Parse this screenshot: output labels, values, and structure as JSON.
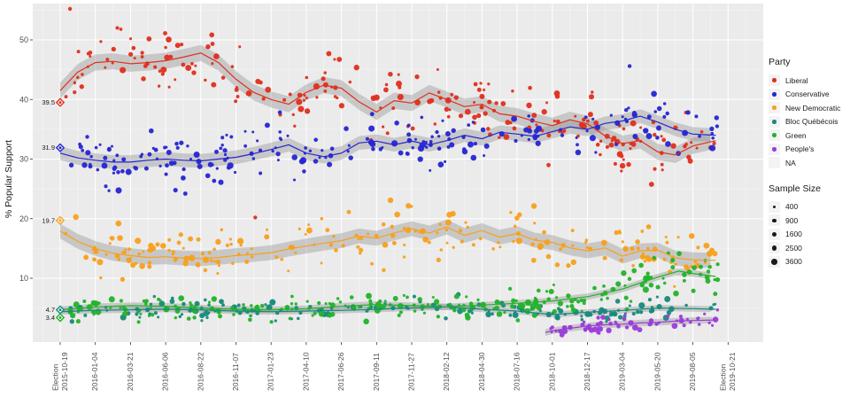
{
  "y_axis": {
    "label": "% Popular Support",
    "ticks": [
      50,
      40,
      30,
      20,
      10
    ]
  },
  "x_axis": {
    "tick_labels": [
      [
        "Election",
        "2015-10-19"
      ],
      [
        "2016-01-04"
      ],
      [
        "2016-03-21"
      ],
      [
        "2016-06-06"
      ],
      [
        "2016-08-22"
      ],
      [
        "2016-11-07"
      ],
      [
        "2017-01-23"
      ],
      [
        "2017-04-10"
      ],
      [
        "2017-06-26"
      ],
      [
        "2017-09-11"
      ],
      [
        "2017-11-27"
      ],
      [
        "2018-02-12"
      ],
      [
        "2018-04-30"
      ],
      [
        "2018-07-16"
      ],
      [
        "2018-10-01"
      ],
      [
        "2018-12-17"
      ],
      [
        "2019-03-04"
      ],
      [
        "2019-05-20"
      ],
      [
        "2019-08-05"
      ],
      [
        "Election",
        "2019-10-21"
      ]
    ]
  },
  "legend": {
    "party": {
      "title": "Party",
      "items": [
        {
          "label": "Liberal",
          "color": "#e0301e"
        },
        {
          "label": "Conservative",
          "color": "#2626d2"
        },
        {
          "label": "New Democratic",
          "color": "#f7a01d"
        },
        {
          "label": "Bloc Québécois",
          "color": "#178a7c"
        },
        {
          "label": "Green",
          "color": "#22b32b"
        },
        {
          "label": "People's",
          "color": "#9b3bd9"
        },
        {
          "label": "NA",
          "color": null
        }
      ]
    },
    "sample_size": {
      "title": "Sample Size",
      "items": [
        {
          "label": "400",
          "r": 1.7
        },
        {
          "label": "900",
          "r": 2.15
        },
        {
          "label": "1600",
          "r": 2.55
        },
        {
          "label": "2500",
          "r": 2.95
        },
        {
          "label": "3600",
          "r": 3.3
        }
      ]
    }
  },
  "chart_data": {
    "type": "scatter",
    "title": "",
    "ylabel": "% Popular Support",
    "ylim": [
      0,
      56
    ],
    "x_ticks_are_dates": [
      "2015-10-19",
      "2016-01-04",
      "2016-03-21",
      "2016-06-06",
      "2016-08-22",
      "2016-11-07",
      "2017-01-23",
      "2017-04-10",
      "2017-06-26",
      "2017-09-11",
      "2017-11-27",
      "2018-02-12",
      "2018-04-30",
      "2018-07-16",
      "2018-10-01",
      "2018-12-17",
      "2019-03-04",
      "2019-05-20",
      "2019-08-05",
      "2019-10-21"
    ],
    "x_unit": "tick index 0-19, ticks evenly spaced (11 weeks apart)",
    "grid": true,
    "legend_position": "right",
    "series": [
      {
        "name": "Liberal",
        "color": "#e0301e",
        "election_2015": 39.5,
        "election_label": "39.5",
        "trend": [
          [
            0,
            41.5
          ],
          [
            0.5,
            44.6
          ],
          [
            1,
            46.2
          ],
          [
            1.5,
            46.4
          ],
          [
            2,
            46.0
          ],
          [
            2.5,
            46.2
          ],
          [
            3,
            46.5
          ],
          [
            3.5,
            47.1
          ],
          [
            4,
            47.8
          ],
          [
            4.5,
            46.2
          ],
          [
            5,
            43.4
          ],
          [
            5.5,
            41.2
          ],
          [
            6,
            40.0
          ],
          [
            6.5,
            39.2
          ],
          [
            7,
            41.2
          ],
          [
            7.5,
            42.4
          ],
          [
            8,
            41.9
          ],
          [
            8.5,
            39.6
          ],
          [
            9,
            37.9
          ],
          [
            9.5,
            39.8
          ],
          [
            10,
            39.4
          ],
          [
            10.5,
            41.1
          ],
          [
            11,
            40.0
          ],
          [
            11.5,
            38.8
          ],
          [
            12,
            39.2
          ],
          [
            12.5,
            37.6
          ],
          [
            13,
            37.2
          ],
          [
            13.5,
            36.3
          ],
          [
            14,
            35.6
          ],
          [
            14.5,
            36.6
          ],
          [
            15,
            35.9
          ],
          [
            15.5,
            33.9
          ],
          [
            16,
            32.6
          ],
          [
            16.5,
            33.1
          ],
          [
            17,
            31.2
          ],
          [
            17.5,
            30.7
          ],
          [
            18,
            32.2
          ],
          [
            18.65,
            33.1
          ]
        ],
        "ribbon_halfwidth": 1.35,
        "scatter": {
          "n": 230,
          "t_range": [
            0.08,
            18.72
          ],
          "sd_base": 1.1,
          "sd_rel": 0.042
        }
      },
      {
        "name": "Conservative",
        "color": "#2626d2",
        "election_2015": 31.9,
        "election_label": "31.9",
        "trend": [
          [
            0,
            31.0
          ],
          [
            0.5,
            30.2
          ],
          [
            1,
            29.8
          ],
          [
            1.5,
            29.5
          ],
          [
            2,
            29.5
          ],
          [
            2.5,
            29.8
          ],
          [
            3,
            30.0
          ],
          [
            3.5,
            29.8
          ],
          [
            4,
            29.7
          ],
          [
            4.5,
            30.0
          ],
          [
            5,
            30.3
          ],
          [
            5.5,
            30.9
          ],
          [
            6,
            31.6
          ],
          [
            6.5,
            32.4
          ],
          [
            7,
            31.0
          ],
          [
            7.5,
            30.4
          ],
          [
            8,
            31.0
          ],
          [
            8.5,
            32.7
          ],
          [
            9,
            33.0
          ],
          [
            9.5,
            32.4
          ],
          [
            10,
            33.0
          ],
          [
            10.5,
            32.4
          ],
          [
            11,
            33.1
          ],
          [
            11.5,
            34.0
          ],
          [
            12,
            33.4
          ],
          [
            12.5,
            34.5
          ],
          [
            13,
            34.2
          ],
          [
            13.5,
            33.8
          ],
          [
            14,
            34.6
          ],
          [
            14.5,
            35.4
          ],
          [
            15,
            35.0
          ],
          [
            15.5,
            36.0
          ],
          [
            16,
            36.4
          ],
          [
            16.5,
            37.2
          ],
          [
            17,
            36.2
          ],
          [
            17.5,
            35.0
          ],
          [
            18,
            34.2
          ],
          [
            18.65,
            34.0
          ]
        ],
        "ribbon_halfwidth": 1.15,
        "scatter": {
          "n": 230,
          "t_range": [
            0.08,
            18.72
          ],
          "sd_base": 0.9,
          "sd_rel": 0.042
        }
      },
      {
        "name": "New Democratic",
        "color": "#f7a01d",
        "election_2015": 19.7,
        "election_label": "19.7",
        "trend": [
          [
            0,
            17.9
          ],
          [
            0.5,
            16.2
          ],
          [
            1,
            15.0
          ],
          [
            1.5,
            14.2
          ],
          [
            2,
            13.8
          ],
          [
            2.5,
            13.5
          ],
          [
            3,
            13.6
          ],
          [
            3.5,
            13.4
          ],
          [
            4,
            13.3
          ],
          [
            4.5,
            13.5
          ],
          [
            5,
            13.8
          ],
          [
            5.5,
            14.0
          ],
          [
            6,
            14.3
          ],
          [
            6.5,
            14.9
          ],
          [
            7,
            15.4
          ],
          [
            7.5,
            15.9
          ],
          [
            8,
            16.3
          ],
          [
            8.5,
            17.1
          ],
          [
            9,
            16.7
          ],
          [
            9.5,
            17.6
          ],
          [
            10,
            18.3
          ],
          [
            10.5,
            17.6
          ],
          [
            11,
            18.6
          ],
          [
            11.5,
            17.2
          ],
          [
            12,
            18.0
          ],
          [
            12.5,
            16.9
          ],
          [
            13,
            17.5
          ],
          [
            13.5,
            16.4
          ],
          [
            14,
            16.0
          ],
          [
            14.5,
            15.1
          ],
          [
            15,
            14.6
          ],
          [
            15.5,
            15.1
          ],
          [
            16,
            13.7
          ],
          [
            16.5,
            14.6
          ],
          [
            17,
            14.7
          ],
          [
            17.5,
            13.4
          ],
          [
            18,
            13.1
          ],
          [
            18.65,
            13.0
          ]
        ],
        "ribbon_halfwidth": 1.25,
        "scatter": {
          "n": 220,
          "t_range": [
            0.08,
            18.72
          ],
          "sd_base": 0.7,
          "sd_rel": 0.09
        }
      },
      {
        "name": "Bloc Québécois",
        "color": "#178a7c",
        "election_2015": 4.7,
        "election_label": "4.7",
        "trend": [
          [
            0,
            4.4
          ],
          [
            1,
            4.6
          ],
          [
            2,
            4.7
          ],
          [
            3,
            4.8
          ],
          [
            4,
            4.7
          ],
          [
            5,
            4.5
          ],
          [
            6,
            4.4
          ],
          [
            7,
            4.5
          ],
          [
            8,
            4.6
          ],
          [
            9,
            4.8
          ],
          [
            10,
            5.0
          ],
          [
            11,
            5.2
          ],
          [
            12,
            4.8
          ],
          [
            13,
            4.5
          ],
          [
            14,
            3.9
          ],
          [
            15,
            4.3
          ],
          [
            16,
            4.6
          ],
          [
            17,
            5.0
          ],
          [
            18,
            4.9
          ],
          [
            18.65,
            4.8
          ]
        ],
        "ribbon_halfwidth": 0.5,
        "scatter": {
          "n": 165,
          "t_range": [
            0.08,
            18.72
          ],
          "sd_base": 0.45,
          "sd_rel": 0.08
        }
      },
      {
        "name": "Green",
        "color": "#22b32b",
        "election_2015": 3.4,
        "election_label": "3.4",
        "trend": [
          [
            0,
            4.7
          ],
          [
            1,
            5.2
          ],
          [
            2,
            5.4
          ],
          [
            3,
            5.3
          ],
          [
            4,
            5.0
          ],
          [
            5,
            4.8
          ],
          [
            6,
            4.7
          ],
          [
            7,
            4.9
          ],
          [
            8,
            5.3
          ],
          [
            9,
            5.6
          ],
          [
            10,
            5.4
          ],
          [
            11,
            5.2
          ],
          [
            12,
            5.5
          ],
          [
            13,
            5.8
          ],
          [
            14,
            6.2
          ],
          [
            15,
            6.9
          ],
          [
            16,
            8.2
          ],
          [
            17,
            10.2
          ],
          [
            17.6,
            11.2
          ],
          [
            18,
            10.8
          ],
          [
            18.65,
            10.3
          ]
        ],
        "ribbon_halfwidth": 0.55,
        "scatter": {
          "n": 230,
          "t_range": [
            0.08,
            18.72
          ],
          "sd_base": 0.35,
          "sd_rel": 0.13
        }
      },
      {
        "name": "People's",
        "color": "#9b3bd9",
        "election_2015": null,
        "election_label": null,
        "trend": [
          [
            13.8,
            0.9
          ],
          [
            14,
            1.2
          ],
          [
            14.5,
            1.6
          ],
          [
            15,
            2.0
          ],
          [
            15.5,
            2.2
          ],
          [
            16,
            2.3
          ],
          [
            16.5,
            2.5
          ],
          [
            17,
            2.6
          ],
          [
            17.5,
            2.8
          ],
          [
            18,
            2.9
          ],
          [
            18.65,
            3.0
          ]
        ],
        "ribbon_halfwidth": 0.55,
        "scatter": {
          "n": 62,
          "t_range": [
            13.9,
            18.72
          ],
          "sd_base": 0.45,
          "sd_rel": 0.12
        }
      }
    ],
    "extra_points": [
      {
        "series": "Liberal",
        "t": 0.28,
        "v": 55.2
      },
      {
        "series": "Liberal",
        "t": 5.55,
        "v": 20.2
      },
      {
        "series": "Conservative",
        "t": 16.2,
        "v": 45.6
      },
      {
        "series": "Green",
        "t": 17.3,
        "v": 14.2
      },
      {
        "series": "Green",
        "t": 16.9,
        "v": 13.4
      }
    ],
    "sample_size_to_radius": {
      "400": 1.7,
      "900": 2.15,
      "1600": 2.55,
      "2500": 2.95,
      "3600": 3.3
    }
  },
  "style": {
    "panel_bg": "#ebebeb",
    "grid_major": "#ffffff",
    "ribbon_color": "#8f8f8f",
    "tick_text": "#4d4d4d",
    "axis_text": "#1a1a1a",
    "sample_dot": "#1a1a1a"
  }
}
